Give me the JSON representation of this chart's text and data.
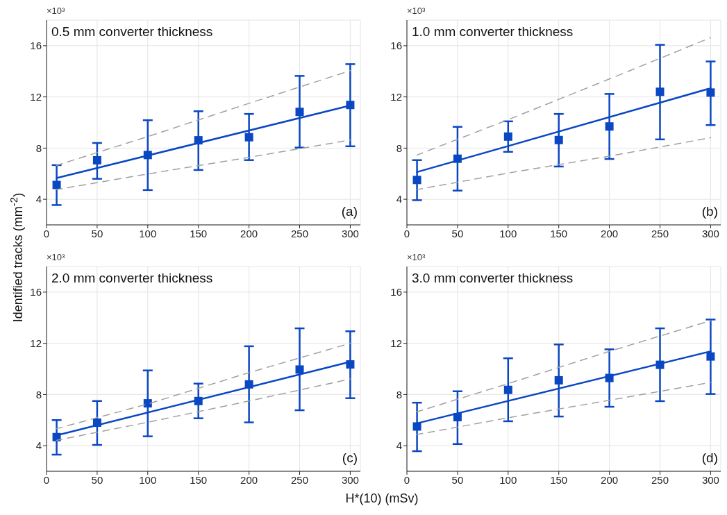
{
  "chart_data": [
    {
      "type": "scatter",
      "title": "0.5 mm converter thickness",
      "ylabel": "Identified tracks (mm$^{-2}$)",
      "annotations": [
        "×10³",
        "(a)"
      ],
      "xlim": [
        0,
        310
      ],
      "xticks": [
        0,
        50,
        100,
        150,
        200,
        250,
        300
      ],
      "ylim": [
        2,
        18
      ],
      "yticks": [
        4,
        8,
        12,
        16
      ],
      "grid": true,
      "series": [
        {
          "type": "scatter",
          "marker": "square",
          "color": "#0a47c2",
          "x": [
            10,
            50,
            100,
            150,
            200,
            250,
            300
          ],
          "values": [
            5.12,
            7.05,
            7.46,
            8.61,
            8.85,
            10.83,
            11.37
          ],
          "errors": [
            [
              3.55,
              6.67
            ],
            [
              5.6,
              8.4
            ],
            [
              4.72,
              10.18
            ],
            [
              6.29,
              10.88
            ],
            [
              7.06,
              10.67
            ],
            [
              8.04,
              13.64
            ],
            [
              8.14,
              14.56
            ]
          ]
        },
        {
          "type": "line",
          "line_style": "solid",
          "color": "#0a47c2",
          "x": [
            10,
            300
          ],
          "values": [
            5.66,
            11.33
          ]
        },
        {
          "type": "line",
          "line_style": "dashed",
          "color": "#a0a0a0",
          "x": [
            10,
            100,
            200,
            300
          ],
          "values": [
            6.65,
            8.9,
            11.5,
            14.05
          ]
        },
        {
          "type": "line",
          "line_style": "dashed",
          "color": "#a0a0a0",
          "x": [
            10,
            100,
            200,
            300
          ],
          "values": [
            4.76,
            5.98,
            7.28,
            8.63
          ]
        }
      ]
    },
    {
      "type": "scatter",
      "title": "1.0 mm converter thickness",
      "annotations": [
        "×10³",
        "(b)"
      ],
      "xlim": [
        0,
        310
      ],
      "xticks": [
        0,
        50,
        100,
        150,
        200,
        250,
        300
      ],
      "ylim": [
        2,
        18
      ],
      "yticks": [
        4,
        8,
        12,
        16
      ],
      "grid": true,
      "series": [
        {
          "type": "scatter",
          "marker": "square",
          "color": "#0a47c2",
          "x": [
            10,
            50,
            100,
            150,
            200,
            250,
            300
          ],
          "values": [
            5.51,
            7.17,
            8.9,
            8.63,
            9.69,
            12.4,
            12.34
          ],
          "errors": [
            [
              3.93,
              7.06
            ],
            [
              4.68,
              9.66
            ],
            [
              7.71,
              10.09
            ],
            [
              6.56,
              10.67
            ],
            [
              7.15,
              12.23
            ],
            [
              8.68,
              16.07
            ],
            [
              9.8,
              14.77
            ]
          ]
        },
        {
          "type": "line",
          "line_style": "solid",
          "color": "#0a47c2",
          "x": [
            10,
            300
          ],
          "values": [
            6.13,
            12.68
          ]
        },
        {
          "type": "line",
          "line_style": "dashed",
          "color": "#a0a0a0",
          "x": [
            10,
            100,
            200,
            300
          ],
          "values": [
            7.46,
            10.22,
            13.4,
            16.63
          ]
        },
        {
          "type": "line",
          "line_style": "dashed",
          "color": "#a0a0a0",
          "x": [
            10,
            100,
            200,
            300
          ],
          "values": [
            4.76,
            6.05,
            7.37,
            8.81
          ]
        }
      ]
    },
    {
      "type": "scatter",
      "title": "2.0 mm converter thickness",
      "xlabel": "H*(10) (mSv)",
      "annotations": [
        "×10³",
        "(c)"
      ],
      "xlim": [
        0,
        310
      ],
      "xticks": [
        0,
        50,
        100,
        150,
        200,
        250,
        300
      ],
      "ylim": [
        2,
        18
      ],
      "yticks": [
        4,
        8,
        12,
        16
      ],
      "grid": true,
      "series": [
        {
          "type": "scatter",
          "marker": "square",
          "color": "#0a47c2",
          "x": [
            10,
            50,
            100,
            150,
            200,
            250,
            300
          ],
          "values": [
            4.67,
            5.8,
            7.31,
            7.49,
            8.79,
            9.95,
            10.35
          ],
          "errors": [
            [
              3.3,
              6.0
            ],
            [
              4.06,
              7.49
            ],
            [
              4.73,
              9.88
            ],
            [
              6.14,
              8.85
            ],
            [
              5.82,
              11.77
            ],
            [
              6.77,
              13.17
            ],
            [
              7.71,
              12.94
            ]
          ]
        },
        {
          "type": "line",
          "line_style": "solid",
          "color": "#0a47c2",
          "x": [
            10,
            300
          ],
          "values": [
            4.81,
            10.56
          ]
        },
        {
          "type": "line",
          "line_style": "dashed",
          "color": "#a0a0a0",
          "x": [
            10,
            100,
            200,
            300
          ],
          "values": [
            5.33,
            7.26,
            9.71,
            12.0
          ]
        },
        {
          "type": "line",
          "line_style": "dashed",
          "color": "#a0a0a0",
          "x": [
            10,
            100,
            200,
            300
          ],
          "values": [
            4.42,
            5.83,
            7.49,
            9.21
          ]
        }
      ]
    },
    {
      "type": "scatter",
      "title": "3.0 mm converter thickness",
      "annotations": [
        "×10³",
        "(d)"
      ],
      "xlim": [
        0,
        310
      ],
      "xticks": [
        0,
        50,
        100,
        150,
        200,
        250,
        300
      ],
      "ylim": [
        2,
        18
      ],
      "yticks": [
        4,
        8,
        12,
        16
      ],
      "grid": true,
      "series": [
        {
          "type": "scatter",
          "marker": "square",
          "color": "#0a47c2",
          "x": [
            10,
            50,
            100,
            150,
            200,
            250,
            300
          ],
          "values": [
            5.5,
            6.23,
            8.36,
            9.11,
            9.29,
            10.32,
            10.97
          ],
          "errors": [
            [
              3.57,
              7.36
            ],
            [
              4.13,
              8.25
            ],
            [
              5.91,
              10.83
            ],
            [
              6.28,
              11.91
            ],
            [
              7.04,
              11.53
            ],
            [
              7.48,
              13.17
            ],
            [
              8.04,
              13.86
            ]
          ]
        },
        {
          "type": "line",
          "line_style": "solid",
          "color": "#0a47c2",
          "x": [
            10,
            300
          ],
          "values": [
            5.75,
            11.37
          ]
        },
        {
          "type": "line",
          "line_style": "dashed",
          "color": "#a0a0a0",
          "x": [
            10,
            100,
            200,
            300
          ],
          "values": [
            6.65,
            8.85,
            11.37,
            13.77
          ]
        },
        {
          "type": "line",
          "line_style": "dashed",
          "color": "#a0a0a0",
          "x": [
            10,
            100,
            200,
            300
          ],
          "values": [
            4.87,
            6.18,
            7.55,
            8.94
          ]
        }
      ]
    }
  ]
}
